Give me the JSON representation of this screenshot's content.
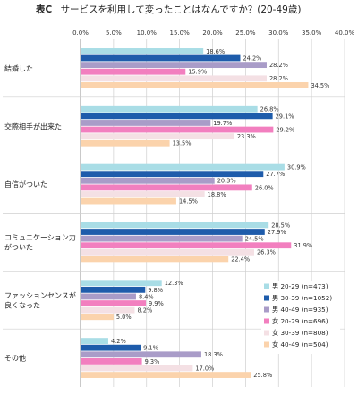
{
  "title_prefix": "表C",
  "title_text": "サービスを利用して変ったことはなんですか？(20-49歳)",
  "chart_data": {
    "type": "bar",
    "orientation": "horizontal",
    "xlim": [
      0,
      40
    ],
    "x_ticks": [
      "0.0%",
      "5.0%",
      "10.0%",
      "15.0%",
      "20.0%",
      "25.0%",
      "30.0%",
      "35.0%",
      "40.0%"
    ],
    "grid": true,
    "legend_position": "bottom-right",
    "categories": [
      [
        "結婚した"
      ],
      [
        "交際相手が出来た"
      ],
      [
        "自信がついた"
      ],
      [
        "コミュニケーション力",
        "がついた"
      ],
      [
        "ファッションセンスが",
        "良くなった"
      ],
      [
        "その他"
      ]
    ],
    "series": [
      {
        "name": "男 20-29 (n=473)",
        "color": "#a9dde6",
        "values": [
          18.6,
          26.8,
          30.9,
          28.5,
          12.3,
          4.2
        ]
      },
      {
        "name": "男 30-39 (n=1052)",
        "color": "#1e5cab",
        "values": [
          24.2,
          29.1,
          27.7,
          27.9,
          9.8,
          9.1
        ]
      },
      {
        "name": "男 40-49 (n=935)",
        "color": "#a99cc8",
        "values": [
          28.2,
          19.7,
          20.3,
          24.5,
          8.4,
          18.3
        ]
      },
      {
        "name": "女 20-29 (n=696)",
        "color": "#f27fbf",
        "values": [
          15.9,
          29.2,
          26.0,
          31.9,
          9.9,
          9.3
        ]
      },
      {
        "name": "女 30-39 (n=808)",
        "color": "#f4e0e4",
        "values": [
          28.2,
          23.3,
          18.8,
          26.3,
          8.2,
          17.0
        ]
      },
      {
        "name": "女 40-49 (n=504)",
        "color": "#fbd3ac",
        "values": [
          34.5,
          13.5,
          14.5,
          22.4,
          5.0,
          25.8
        ]
      }
    ]
  }
}
